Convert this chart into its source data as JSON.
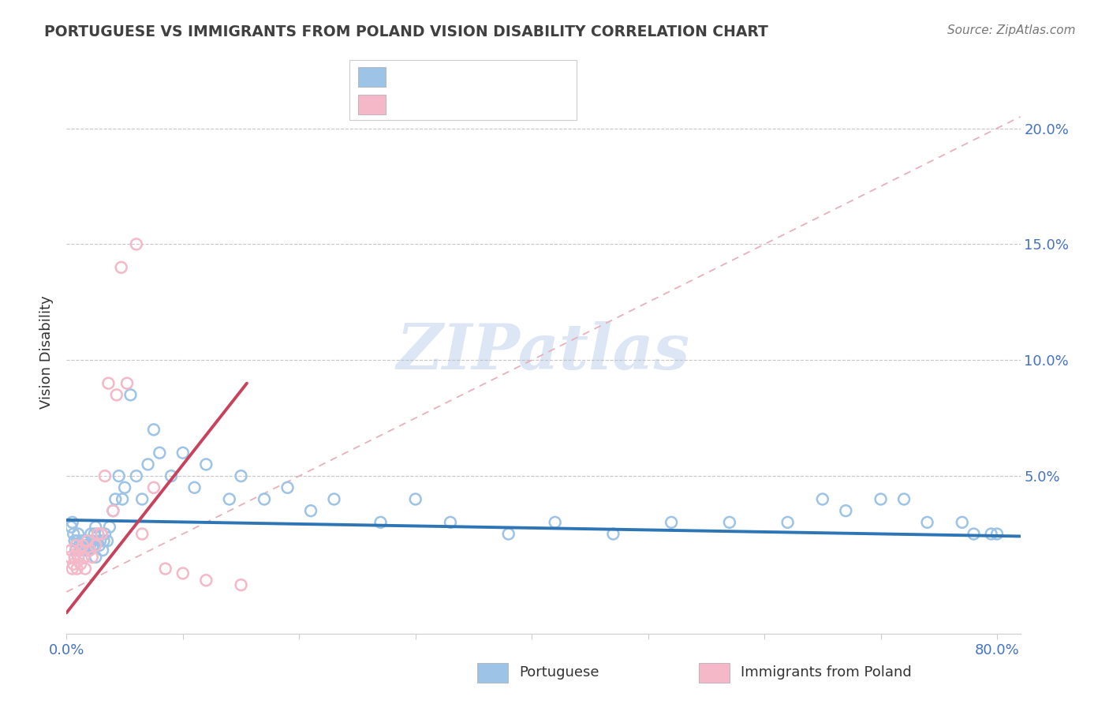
{
  "title": "PORTUGUESE VS IMMIGRANTS FROM POLAND VISION DISABILITY CORRELATION CHART",
  "source": "Source: ZipAtlas.com",
  "ylabel": "Vision Disability",
  "xlim": [
    0.0,
    0.82
  ],
  "ylim": [
    -0.018,
    0.225
  ],
  "x_ticks": [
    0.0,
    0.1,
    0.2,
    0.3,
    0.4,
    0.5,
    0.6,
    0.7,
    0.8
  ],
  "x_tick_labels": [
    "0.0%",
    "",
    "",
    "",
    "",
    "",
    "",
    "",
    "80.0%"
  ],
  "y_ticks": [
    0.05,
    0.1,
    0.15,
    0.2
  ],
  "y_tick_labels": [
    "5.0%",
    "10.0%",
    "15.0%",
    "20.0%"
  ],
  "blue_color": "#9dc3e6",
  "pink_color": "#f4b8c8",
  "blue_line_color": "#2e75b6",
  "pink_line_color": "#c9415a",
  "diag_line_color": "#e8b0bc",
  "title_color": "#404040",
  "axis_label_color": "#4472c4",
  "watermark_color": "#dce6f4",
  "blue_scatter_x": [
    0.004,
    0.005,
    0.006,
    0.007,
    0.008,
    0.009,
    0.01,
    0.01,
    0.011,
    0.012,
    0.013,
    0.014,
    0.015,
    0.016,
    0.017,
    0.018,
    0.019,
    0.02,
    0.021,
    0.022,
    0.023,
    0.024,
    0.025,
    0.025,
    0.027,
    0.028,
    0.029,
    0.03,
    0.031,
    0.032,
    0.033,
    0.035,
    0.037,
    0.04,
    0.042,
    0.045,
    0.048,
    0.05,
    0.055,
    0.06,
    0.065,
    0.07,
    0.075,
    0.08,
    0.09,
    0.1,
    0.11,
    0.12,
    0.14,
    0.15,
    0.17,
    0.19,
    0.21,
    0.23,
    0.27,
    0.3,
    0.33,
    0.38,
    0.42,
    0.47,
    0.52,
    0.57,
    0.62,
    0.65,
    0.67,
    0.7,
    0.72,
    0.74,
    0.77,
    0.78,
    0.795,
    0.8
  ],
  "blue_scatter_y": [
    0.028,
    0.03,
    0.025,
    0.022,
    0.018,
    0.022,
    0.015,
    0.025,
    0.02,
    0.018,
    0.022,
    0.02,
    0.015,
    0.02,
    0.018,
    0.022,
    0.018,
    0.02,
    0.025,
    0.022,
    0.02,
    0.025,
    0.028,
    0.015,
    0.025,
    0.02,
    0.022,
    0.025,
    0.018,
    0.022,
    0.025,
    0.022,
    0.028,
    0.035,
    0.04,
    0.05,
    0.04,
    0.045,
    0.085,
    0.05,
    0.04,
    0.055,
    0.07,
    0.06,
    0.05,
    0.06,
    0.045,
    0.055,
    0.04,
    0.05,
    0.04,
    0.045,
    0.035,
    0.04,
    0.03,
    0.04,
    0.03,
    0.025,
    0.03,
    0.025,
    0.03,
    0.03,
    0.03,
    0.04,
    0.035,
    0.04,
    0.04,
    0.03,
    0.03,
    0.025,
    0.025,
    0.025
  ],
  "pink_scatter_x": [
    0.003,
    0.004,
    0.005,
    0.006,
    0.007,
    0.008,
    0.009,
    0.01,
    0.011,
    0.012,
    0.014,
    0.015,
    0.016,
    0.018,
    0.02,
    0.022,
    0.025,
    0.027,
    0.03,
    0.033,
    0.036,
    0.04,
    0.043,
    0.047,
    0.052,
    0.06,
    0.065,
    0.075,
    0.085,
    0.1,
    0.12,
    0.15
  ],
  "pink_scatter_y": [
    0.015,
    0.018,
    0.01,
    0.012,
    0.015,
    0.02,
    0.01,
    0.015,
    0.018,
    0.012,
    0.02,
    0.015,
    0.01,
    0.022,
    0.018,
    0.015,
    0.02,
    0.025,
    0.025,
    0.05,
    0.09,
    0.035,
    0.085,
    0.14,
    0.09,
    0.15,
    0.025,
    0.045,
    0.01,
    0.008,
    0.005,
    0.003
  ],
  "blue_trend_x": [
    0.0,
    0.82
  ],
  "blue_trend_y": [
    0.031,
    0.024
  ],
  "pink_trend_x": [
    0.0,
    0.155
  ],
  "pink_trend_y": [
    -0.009,
    0.09
  ]
}
